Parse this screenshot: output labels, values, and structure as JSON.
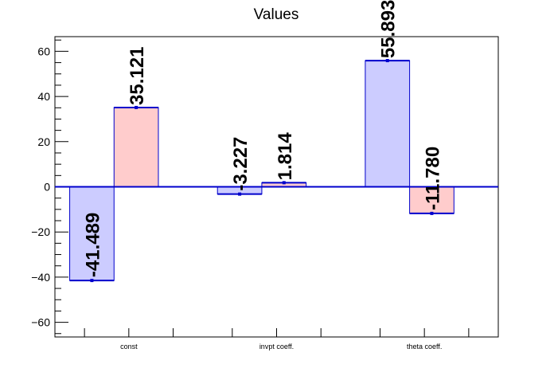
{
  "chart_data": {
    "type": "bar",
    "title": "Values",
    "xlabel": "",
    "ylabel": "",
    "categories": [
      "const",
      "invpt coeff.",
      "theta coeff."
    ],
    "series": [
      {
        "values": [
          -41.489,
          -3.227,
          55.893
        ],
        "labels": [
          "-41.489",
          "-3.227",
          "55.893"
        ],
        "color": "#ccccff"
      },
      {
        "values": [
          35.121,
          1.814,
          -11.78
        ],
        "labels": [
          "35.121",
          "1.814",
          "-11.780"
        ],
        "color": "#ffcccc"
      }
    ],
    "ylim": [
      -66.5,
      66.5
    ],
    "yticks": [
      -60,
      -40,
      -20,
      0,
      20,
      40,
      60
    ],
    "ytick_labels": [
      "−60",
      "−40",
      "−20",
      "0",
      "20",
      "40",
      "60"
    ],
    "edge_color": "#0000cc",
    "grid": false,
    "legend": "none"
  }
}
